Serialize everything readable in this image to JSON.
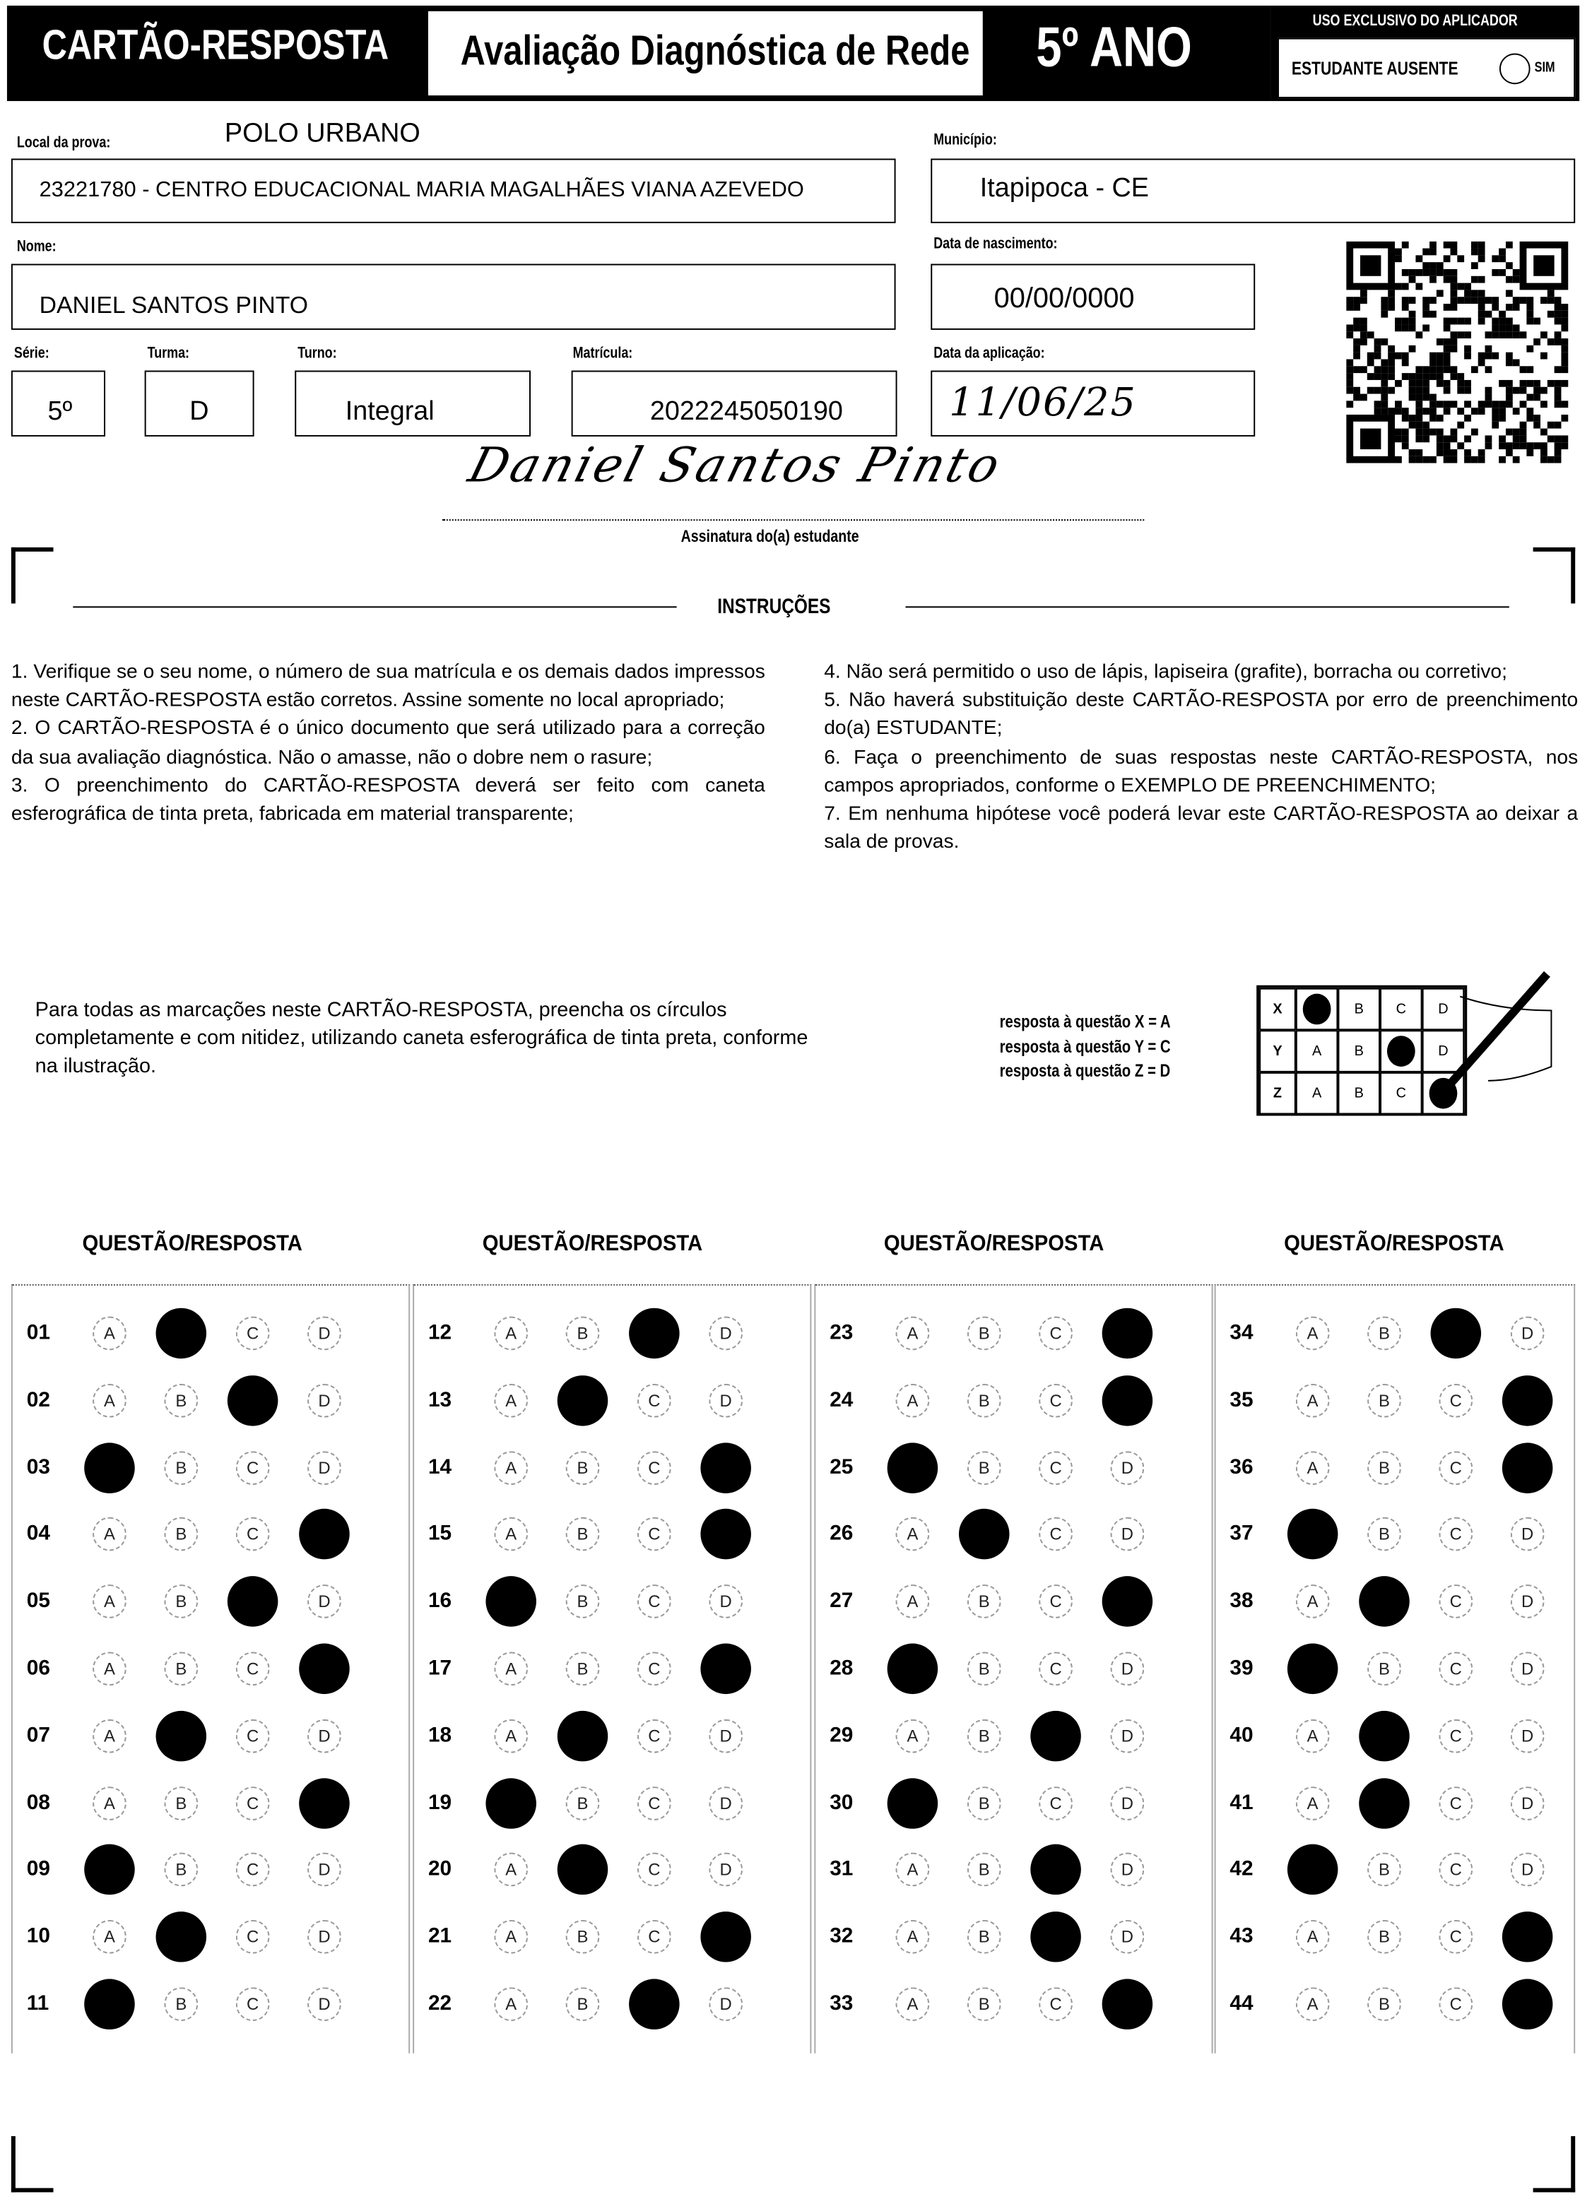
{
  "header": {
    "card_title": "CARTÃO-RESPOSTA",
    "evaluation": "Avaliação Diagnóstica de Rede",
    "grade": "5º ANO",
    "applicator": {
      "label": "USO EXCLUSIVO DO APLICADOR",
      "absent_label": "ESTUDANTE AUSENTE",
      "absent_option": "SIM"
    }
  },
  "fields": {
    "exam_location": {
      "label": "Local da prova:",
      "value": "POLO URBANO"
    },
    "school": "23221780 - CENTRO EDUCACIONAL MARIA MAGALHÃES VIANA AZEVEDO",
    "municipality": {
      "label": "Município:",
      "value": "Itapipoca - CE"
    },
    "name": {
      "label": "Nome:",
      "value": "DANIEL SANTOS PINTO"
    },
    "birth_date": {
      "label": "Data de nascimento:",
      "value": "00/00/0000"
    },
    "grade": {
      "label": "Série:",
      "value": "5º"
    },
    "class": {
      "label": "Turma:",
      "value": "D"
    },
    "shift": {
      "label": "Turno:",
      "value": "Integral"
    },
    "enrollment": {
      "label": "Matrícula:",
      "value": "2022245050190"
    },
    "application_date": {
      "label": "Data da aplicação:",
      "value": "11/06/25"
    }
  },
  "signature": {
    "handwritten": "Daniel Santos Pinto",
    "label": "Assinatura do(a) estudante"
  },
  "instructions": {
    "title": "INSTRUÇÕES",
    "left": "1. Verifique se o seu nome, o número de sua matrícula e os demais dados impressos neste CARTÃO-RESPOSTA estão corretos. Assine somente no local apropriado;\n2. O CARTÃO-RESPOSTA é o único documento que será utilizado para a correção da sua avaliação diagnóstica. Não o amasse, não o dobre nem o rasure;\n3. O preenchimento do CARTÃO-RESPOSTA deverá ser feito com caneta esferográfica de tinta preta, fabricada em material transparente;",
    "right": "4. Não será permitido o uso de lápis, lapiseira (grafite), borracha ou corretivo;\n5. Não haverá substituição deste CARTÃO-RESPOSTA por erro de preenchimento do(a) ESTUDANTE;\n6. Faça o preenchimento de suas respostas neste CARTÃO-RESPOSTA, nos campos apropriados, conforme o EXEMPLO DE PREENCHIMENTO;\n7. Em nenhuma hipótese você poderá levar este CARTÃO-RESPOSTA ao deixar a sala de provas."
  },
  "example": {
    "text": "Para todas as marcações neste CARTÃO-RESPOSTA, preencha os círculos completamente e com nitidez, utilizando caneta esferográfica de tinta preta, conforme na ilustração.",
    "legend": [
      "resposta à questão X = A",
      "resposta à questão Y = C",
      "resposta à questão Z = D"
    ],
    "rows": [
      {
        "q": "X",
        "marked": "A"
      },
      {
        "q": "Y",
        "marked": "C"
      },
      {
        "q": "Z",
        "marked": "D"
      }
    ]
  },
  "answer_sheet": {
    "column_header": "QUESTÃO/RESPOSTA",
    "options": [
      "A",
      "B",
      "C",
      "D"
    ],
    "columns": [
      [
        {
          "n": "01",
          "a": "B"
        },
        {
          "n": "02",
          "a": "C"
        },
        {
          "n": "03",
          "a": "A"
        },
        {
          "n": "04",
          "a": "D"
        },
        {
          "n": "05",
          "a": "C"
        },
        {
          "n": "06",
          "a": "D"
        },
        {
          "n": "07",
          "a": "B"
        },
        {
          "n": "08",
          "a": "D"
        },
        {
          "n": "09",
          "a": "A"
        },
        {
          "n": "10",
          "a": "B"
        },
        {
          "n": "11",
          "a": "A"
        }
      ],
      [
        {
          "n": "12",
          "a": "C"
        },
        {
          "n": "13",
          "a": "B"
        },
        {
          "n": "14",
          "a": "D"
        },
        {
          "n": "15",
          "a": "D"
        },
        {
          "n": "16",
          "a": "A"
        },
        {
          "n": "17",
          "a": "D"
        },
        {
          "n": "18",
          "a": "B"
        },
        {
          "n": "19",
          "a": "A"
        },
        {
          "n": "20",
          "a": "B"
        },
        {
          "n": "21",
          "a": "D"
        },
        {
          "n": "22",
          "a": "C"
        }
      ],
      [
        {
          "n": "23",
          "a": "D"
        },
        {
          "n": "24",
          "a": "D"
        },
        {
          "n": "25",
          "a": "A"
        },
        {
          "n": "26",
          "a": "B"
        },
        {
          "n": "27",
          "a": "D"
        },
        {
          "n": "28",
          "a": "A"
        },
        {
          "n": "29",
          "a": "C"
        },
        {
          "n": "30",
          "a": "A"
        },
        {
          "n": "31",
          "a": "C"
        },
        {
          "n": "32",
          "a": "C"
        },
        {
          "n": "33",
          "a": "D"
        }
      ],
      [
        {
          "n": "34",
          "a": "C"
        },
        {
          "n": "35",
          "a": "D"
        },
        {
          "n": "36",
          "a": "D"
        },
        {
          "n": "37",
          "a": "A"
        },
        {
          "n": "38",
          "a": "B"
        },
        {
          "n": "39",
          "a": "A"
        },
        {
          "n": "40",
          "a": "B"
        },
        {
          "n": "41",
          "a": "B"
        },
        {
          "n": "42",
          "a": "A"
        },
        {
          "n": "43",
          "a": "D"
        },
        {
          "n": "44",
          "a": "D"
        }
      ]
    ]
  }
}
